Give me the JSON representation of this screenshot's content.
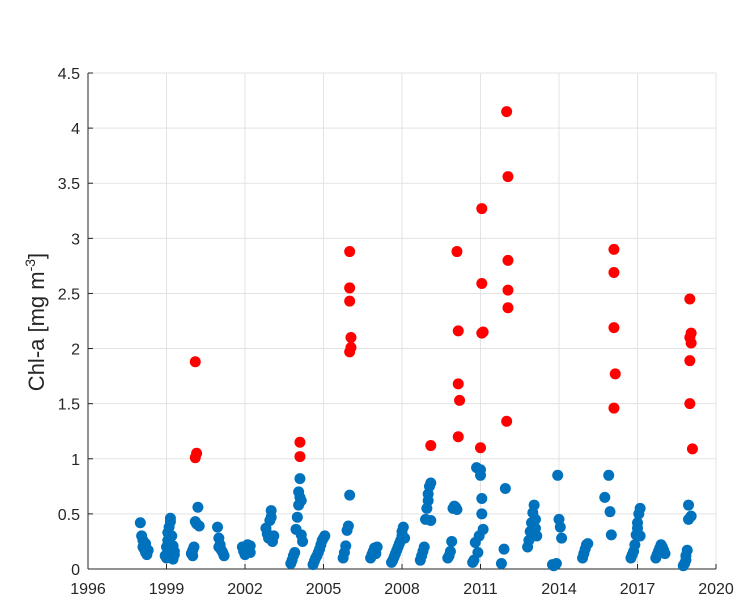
{
  "chart_data": {
    "type": "scatter",
    "title": "",
    "xlabel": "",
    "ylabel_main": "Chl-a [mg m",
    "ylabel_sup": "-3",
    "ylabel_close": "]",
    "xlim": [
      1996,
      2020
    ],
    "ylim": [
      0,
      4.5
    ],
    "x_ticks": [
      1996,
      1999,
      2002,
      2005,
      2008,
      2011,
      2014,
      2017,
      2020
    ],
    "y_ticks": [
      0,
      0.5,
      1,
      1.5,
      2,
      2.5,
      3,
      3.5,
      4,
      4.5
    ],
    "y_tick_labels": [
      "0",
      "0.5",
      "1",
      "1.5",
      "2",
      "2.5",
      "3",
      "3.5",
      "4",
      "4.5"
    ],
    "grid": true,
    "series": [
      {
        "color": "#0072BD",
        "points": [
          [
            1998.0,
            0.42
          ],
          [
            1998.05,
            0.3
          ],
          [
            1998.1,
            0.26
          ],
          [
            1998.1,
            0.2
          ],
          [
            1998.15,
            0.18
          ],
          [
            1998.2,
            0.23
          ],
          [
            1998.2,
            0.15
          ],
          [
            1998.25,
            0.13
          ],
          [
            1998.3,
            0.17
          ],
          [
            1998.95,
            0.12
          ],
          [
            1999.0,
            0.1
          ],
          [
            1999.0,
            0.2
          ],
          [
            1999.05,
            0.26
          ],
          [
            1999.05,
            0.33
          ],
          [
            1999.1,
            0.38
          ],
          [
            1999.15,
            0.43
          ],
          [
            1999.15,
            0.46
          ],
          [
            1999.2,
            0.3
          ],
          [
            1999.25,
            0.21
          ],
          [
            1999.3,
            0.13
          ],
          [
            1999.3,
            0.16
          ],
          [
            1999.95,
            0.14
          ],
          [
            2000.0,
            0.12
          ],
          [
            2000.05,
            0.2
          ],
          [
            2000.1,
            0.43
          ],
          [
            2000.15,
            0.41
          ],
          [
            2000.2,
            0.56
          ],
          [
            2000.25,
            0.39
          ],
          [
            2000.95,
            0.38
          ],
          [
            2001.0,
            0.28
          ],
          [
            2001.0,
            0.2
          ],
          [
            2001.05,
            0.22
          ],
          [
            2001.1,
            0.17
          ],
          [
            2001.15,
            0.15
          ],
          [
            2001.2,
            0.12
          ],
          [
            1999.25,
            0.09
          ],
          [
            2000.0,
            0.17
          ],
          [
            2001.9,
            0.2
          ],
          [
            2001.95,
            0.16
          ],
          [
            2002.0,
            0.13
          ],
          [
            2002.05,
            0.18
          ],
          [
            2002.1,
            0.22
          ],
          [
            2002.15,
            0.19
          ],
          [
            2002.2,
            0.15
          ],
          [
            2002.2,
            0.21
          ],
          [
            2002.8,
            0.37
          ],
          [
            2002.85,
            0.32
          ],
          [
            2002.9,
            0.28
          ],
          [
            2002.95,
            0.44
          ],
          [
            2003.0,
            0.53
          ],
          [
            2003.0,
            0.47
          ],
          [
            2003.05,
            0.25
          ],
          [
            2003.1,
            0.3
          ],
          [
            2003.75,
            0.05
          ],
          [
            2003.8,
            0.08
          ],
          [
            2003.85,
            0.12
          ],
          [
            2003.9,
            0.15
          ],
          [
            2003.95,
            0.36
          ],
          [
            2004.0,
            0.47
          ],
          [
            2004.05,
            0.58
          ],
          [
            2004.05,
            0.7
          ],
          [
            2004.1,
            0.82
          ],
          [
            2004.1,
            0.65
          ],
          [
            2004.15,
            0.62
          ],
          [
            2004.15,
            0.31
          ],
          [
            2004.2,
            0.25
          ],
          [
            2004.6,
            0.04
          ],
          [
            2004.65,
            0.07
          ],
          [
            2004.7,
            0.1
          ],
          [
            2004.75,
            0.12
          ],
          [
            2004.8,
            0.15
          ],
          [
            2004.85,
            0.18
          ],
          [
            2004.9,
            0.22
          ],
          [
            2004.95,
            0.26
          ],
          [
            2005.0,
            0.28
          ],
          [
            2005.05,
            0.3
          ],
          [
            2005.75,
            0.1
          ],
          [
            2005.8,
            0.15
          ],
          [
            2005.85,
            0.21
          ],
          [
            2005.9,
            0.35
          ],
          [
            2005.95,
            0.39
          ],
          [
            2006.0,
            0.67
          ],
          [
            2006.8,
            0.1
          ],
          [
            2006.85,
            0.13
          ],
          [
            2006.9,
            0.16
          ],
          [
            2006.95,
            0.19
          ],
          [
            2007.0,
            0.14
          ],
          [
            2007.05,
            0.2
          ],
          [
            2007.6,
            0.06
          ],
          [
            2007.65,
            0.08
          ],
          [
            2007.7,
            0.11
          ],
          [
            2007.75,
            0.14
          ],
          [
            2007.8,
            0.17
          ],
          [
            2007.85,
            0.2
          ],
          [
            2007.9,
            0.23
          ],
          [
            2007.95,
            0.26
          ],
          [
            2008.0,
            0.3
          ],
          [
            2008.0,
            0.34
          ],
          [
            2008.05,
            0.38
          ],
          [
            2008.1,
            0.28
          ],
          [
            2008.7,
            0.08
          ],
          [
            2008.75,
            0.12
          ],
          [
            2008.8,
            0.16
          ],
          [
            2008.85,
            0.2
          ],
          [
            2008.9,
            0.45
          ],
          [
            2008.95,
            0.55
          ],
          [
            2009.0,
            0.62
          ],
          [
            2009.0,
            0.68
          ],
          [
            2009.05,
            0.75
          ],
          [
            2009.1,
            0.78
          ],
          [
            2009.1,
            0.44
          ],
          [
            2009.75,
            0.1
          ],
          [
            2009.8,
            0.12
          ],
          [
            2009.85,
            0.16
          ],
          [
            2009.9,
            0.25
          ],
          [
            2009.95,
            0.55
          ],
          [
            2010.0,
            0.57
          ],
          [
            2010.05,
            0.56
          ],
          [
            2010.1,
            0.54
          ],
          [
            2010.7,
            0.06
          ],
          [
            2010.75,
            0.08
          ],
          [
            2010.8,
            0.24
          ],
          [
            2010.85,
            0.92
          ],
          [
            2010.9,
            0.15
          ],
          [
            2010.95,
            0.3
          ],
          [
            2011.0,
            0.9
          ],
          [
            2011.0,
            0.85
          ],
          [
            2011.05,
            0.64
          ],
          [
            2011.05,
            0.5
          ],
          [
            2011.1,
            0.36
          ],
          [
            2011.8,
            0.05
          ],
          [
            2011.9,
            0.18
          ],
          [
            2011.95,
            0.73
          ],
          [
            2012.8,
            0.2
          ],
          [
            2012.85,
            0.26
          ],
          [
            2012.9,
            0.34
          ],
          [
            2012.95,
            0.42
          ],
          [
            2013.0,
            0.51
          ],
          [
            2013.05,
            0.58
          ],
          [
            2013.1,
            0.45
          ],
          [
            2013.1,
            0.37
          ],
          [
            2013.15,
            0.3
          ],
          [
            2013.75,
            0.04
          ],
          [
            2013.8,
            0.03
          ],
          [
            2013.9,
            0.05
          ],
          [
            2013.95,
            0.85
          ],
          [
            2014.0,
            0.45
          ],
          [
            2014.05,
            0.38
          ],
          [
            2014.1,
            0.28
          ],
          [
            2014.9,
            0.1
          ],
          [
            2014.95,
            0.14
          ],
          [
            2015.0,
            0.18
          ],
          [
            2015.05,
            0.22
          ],
          [
            2015.1,
            0.23
          ],
          [
            2015.75,
            0.65
          ],
          [
            2015.9,
            0.85
          ],
          [
            2015.95,
            0.52
          ],
          [
            2016.0,
            0.31
          ],
          [
            2016.75,
            0.1
          ],
          [
            2016.8,
            0.13
          ],
          [
            2016.85,
            0.16
          ],
          [
            2016.9,
            0.22
          ],
          [
            2016.95,
            0.31
          ],
          [
            2017.0,
            0.37
          ],
          [
            2017.0,
            0.42
          ],
          [
            2017.05,
            0.5
          ],
          [
            2017.1,
            0.55
          ],
          [
            2017.1,
            0.3
          ],
          [
            2017.7,
            0.1
          ],
          [
            2017.75,
            0.13
          ],
          [
            2017.8,
            0.16
          ],
          [
            2017.85,
            0.19
          ],
          [
            2017.9,
            0.22
          ],
          [
            2017.95,
            0.2
          ],
          [
            2018.0,
            0.17
          ],
          [
            2018.05,
            0.14
          ],
          [
            2018.75,
            0.03
          ],
          [
            2018.8,
            0.05
          ],
          [
            2018.85,
            0.08
          ],
          [
            2018.85,
            0.12
          ],
          [
            2018.9,
            0.17
          ],
          [
            2018.95,
            0.45
          ],
          [
            2018.95,
            0.58
          ],
          [
            2019.05,
            0.48
          ]
        ]
      },
      {
        "color": "#FF0000",
        "points": [
          [
            2000.1,
            1.88
          ],
          [
            2000.1,
            1.01
          ],
          [
            2000.15,
            1.05
          ],
          [
            2004.1,
            1.15
          ],
          [
            2004.1,
            1.02
          ],
          [
            2006.0,
            2.88
          ],
          [
            2006.0,
            2.55
          ],
          [
            2006.0,
            2.43
          ],
          [
            2006.05,
            2.1
          ],
          [
            2006.05,
            2.01
          ],
          [
            2006.0,
            1.97
          ],
          [
            2009.1,
            1.12
          ],
          [
            2010.1,
            2.88
          ],
          [
            2010.15,
            2.16
          ],
          [
            2010.15,
            1.68
          ],
          [
            2010.2,
            1.53
          ],
          [
            2010.15,
            1.2
          ],
          [
            2011.05,
            3.27
          ],
          [
            2011.05,
            2.59
          ],
          [
            2011.1,
            2.15
          ],
          [
            2011.05,
            2.14
          ],
          [
            2011.0,
            1.1
          ],
          [
            2012.0,
            4.15
          ],
          [
            2012.05,
            3.56
          ],
          [
            2012.05,
            2.8
          ],
          [
            2012.05,
            2.53
          ],
          [
            2012.05,
            2.37
          ],
          [
            2012.0,
            1.34
          ],
          [
            2016.1,
            2.9
          ],
          [
            2016.1,
            2.69
          ],
          [
            2016.1,
            2.19
          ],
          [
            2016.15,
            1.77
          ],
          [
            2016.1,
            1.46
          ],
          [
            2019.0,
            2.45
          ],
          [
            2019.0,
            2.1
          ],
          [
            2019.05,
            2.14
          ],
          [
            2019.05,
            2.05
          ],
          [
            2019.0,
            1.89
          ],
          [
            2019.0,
            1.5
          ],
          [
            2019.1,
            1.09
          ]
        ]
      }
    ]
  }
}
